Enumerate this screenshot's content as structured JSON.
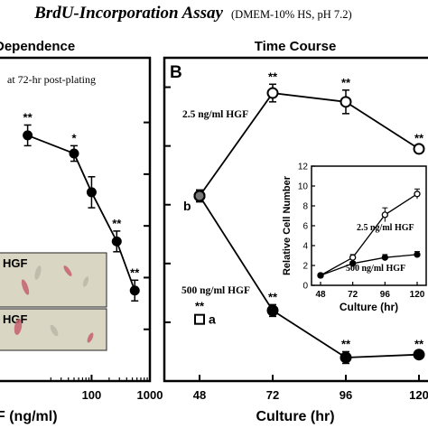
{
  "header": {
    "title": "BrdU-Incorporation Assay",
    "subtitle": "(DMEM-10% HS, pH 7.2)"
  },
  "colors": {
    "axis": "#000000",
    "background": "#ffffff",
    "photo_bg": "#d9d7c4",
    "cell_stain": "#c4606e"
  },
  "chart_data": [
    {
      "type": "line",
      "panel_title": "Dependence",
      "annotation": "at 72-hr post-plating",
      "xlabel": "F (ng/ml)",
      "xscale": "log",
      "xticks": [
        "100",
        "1000"
      ],
      "series": [
        {
          "points": [
            {
              "x": 8,
              "y": 95
            },
            {
              "x": 50,
              "y": 88
            },
            {
              "x": 100,
              "y": 73
            },
            {
              "x": 270,
              "y": 54
            },
            {
              "x": 550,
              "y": 35
            }
          ],
          "error": [
            4,
            3,
            6,
            4,
            4
          ],
          "significance": [
            "**",
            "*",
            "",
            "**",
            "**"
          ]
        }
      ],
      "inset_photos": {
        "labels": [
          "HGF",
          "HGF"
        ]
      }
    },
    {
      "type": "line",
      "panel_label": "B",
      "panel_title": "Time Course",
      "xlabel": "Culture (hr)",
      "xticks": [
        "48",
        "72",
        "96",
        "120"
      ],
      "xlim": [
        48,
        120
      ],
      "series": [
        {
          "name": "2.5 ng/ml HGF",
          "marker": "open-circle",
          "points": [
            {
              "x": 48,
              "y": 63
            },
            {
              "x": 72,
              "y": 98
            },
            {
              "x": 96,
              "y": 95
            },
            {
              "x": 120,
              "y": 79
            }
          ],
          "error": [
            2,
            3,
            4,
            1
          ],
          "significance": [
            "",
            "**",
            "**",
            "**"
          ]
        },
        {
          "name": "500 ng/ml HGF",
          "marker": "filled-circle",
          "points": [
            {
              "x": 48,
              "y": 63
            },
            {
              "x": 72,
              "y": 24
            },
            {
              "x": 96,
              "y": 8
            },
            {
              "x": 120,
              "y": 9
            }
          ],
          "error": [
            2,
            2,
            2,
            1
          ],
          "significance": [
            "",
            "**",
            "**",
            "**"
          ]
        }
      ],
      "point_label_b": "b",
      "marker_a": {
        "label": "a",
        "significance": "**",
        "x": 48,
        "y": 21
      },
      "inset": {
        "type": "line",
        "xlabel": "Culture (hr)",
        "ylabel": "Relative Cell Number",
        "xticks": [
          "48",
          "72",
          "96",
          "120"
        ],
        "yticks": [
          "0",
          "2",
          "4",
          "6",
          "8",
          "10",
          "12"
        ],
        "xlim": [
          48,
          120
        ],
        "ylim": [
          0,
          12
        ],
        "series": [
          {
            "name": "2.5 ng/ml HGF",
            "marker": "open-circle",
            "x": [
              48,
              72,
              96,
              120
            ],
            "y": [
              1.0,
              2.8,
              7.1,
              9.2
            ],
            "error": [
              0.1,
              0.3,
              0.7,
              0.5
            ]
          },
          {
            "name": "500 ng/ml HGF",
            "marker": "filled-circle",
            "x": [
              48,
              72,
              96,
              120
            ],
            "y": [
              1.0,
              2.2,
              2.8,
              3.1
            ],
            "error": [
              0.1,
              0.2,
              0.3,
              0.3
            ]
          }
        ]
      }
    }
  ]
}
